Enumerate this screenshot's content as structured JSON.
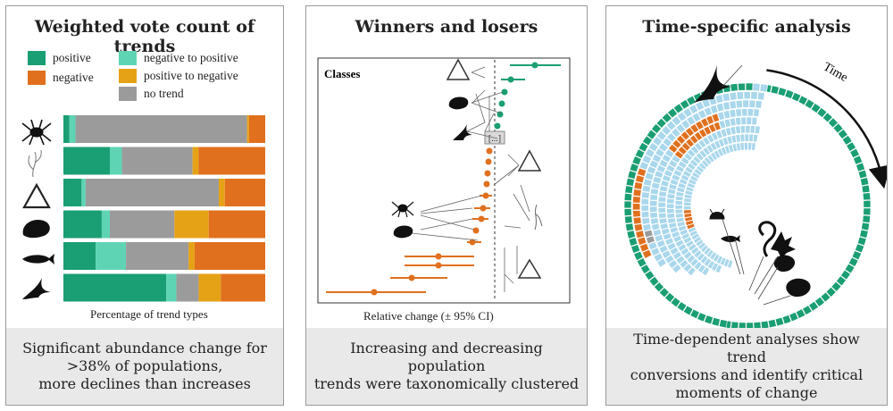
{
  "colors": {
    "positive": "#1a9e73",
    "negative": "#e0701e",
    "negative_to_positive": "#5fd4b4",
    "positive_to_negative": "#e6a217",
    "no_trend": "#9b9b9b",
    "light_blue": "#a9d7ec",
    "footer_bg": "#e9e9e9"
  },
  "panel1": {
    "title": "Weighted vote count of trends",
    "legend": [
      {
        "key": "positive",
        "label": "positive"
      },
      {
        "key": "negative",
        "label": "negative"
      },
      {
        "key": "negative_to_positive",
        "label": "negative to positive"
      },
      {
        "key": "positive_to_negative",
        "label": "positive to negative"
      },
      {
        "key": "no_trend",
        "label": "no trend"
      }
    ],
    "icons": [
      "crab-icon",
      "worm-icon",
      "triangle-icon",
      "mussel-icon",
      "fish-icon",
      "bird-icon"
    ],
    "xlabel": "Percentage of trend types",
    "footer": [
      "Significant abundance change for",
      ">38% of populations,",
      "more declines than increases"
    ]
  },
  "panel2": {
    "title": "Winners and losers",
    "classes_label": "Classes",
    "ellipsis_label": "[...]",
    "xlabel": "Relative change (± 95% CI)",
    "footer": [
      "Increasing and decreasing population",
      "trends were taxonomically clustered"
    ]
  },
  "panel3": {
    "title": "Time-specific analysis",
    "time_label": "Time",
    "footer": [
      "Time-dependent analyses show trend",
      "conversions and identify critical",
      "moments of change"
    ]
  },
  "chart_data": {
    "type": "bar",
    "stacked": true,
    "orientation": "horizontal",
    "title": "Weighted vote count of trends",
    "xlabel": "Percentage of trend types",
    "x_range": [
      0,
      100
    ],
    "categories": [
      "crab",
      "worm",
      "triangle",
      "mussel",
      "fish",
      "bird"
    ],
    "series": [
      {
        "name": "positive",
        "values": [
          3,
          23,
          9,
          19,
          16,
          51
        ]
      },
      {
        "name": "negative to positive",
        "values": [
          3,
          6,
          2,
          4,
          15,
          5
        ]
      },
      {
        "name": "no trend",
        "values": [
          85,
          35,
          66,
          32,
          31,
          11
        ]
      },
      {
        "name": "positive to negative",
        "values": [
          1,
          3,
          3,
          17,
          3,
          11
        ]
      },
      {
        "name": "negative",
        "values": [
          8,
          33,
          20,
          28,
          35,
          22
        ]
      }
    ]
  }
}
